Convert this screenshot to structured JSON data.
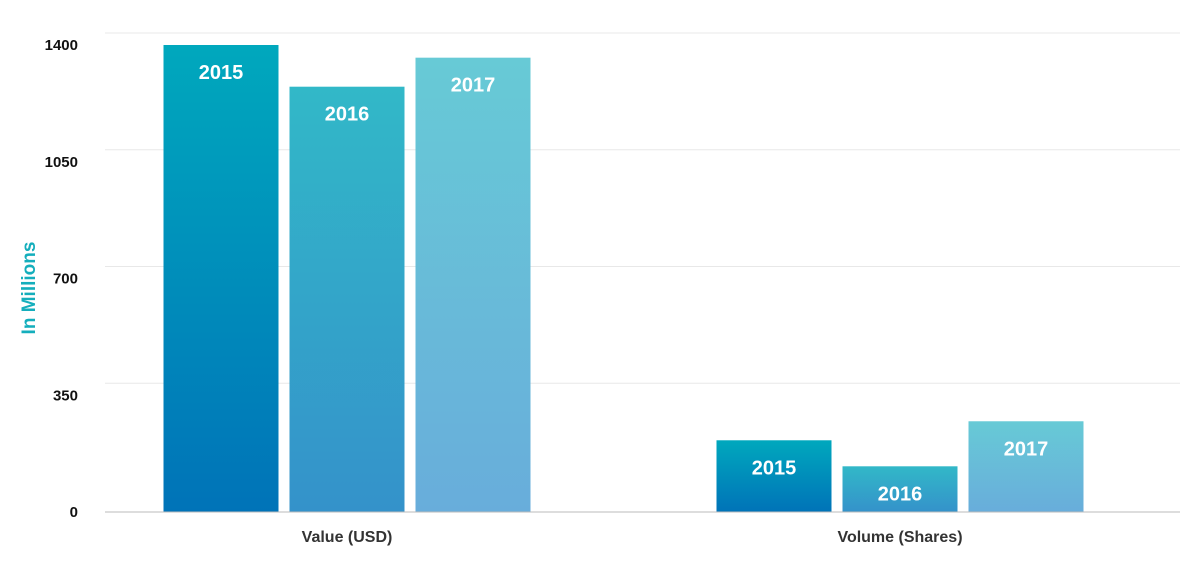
{
  "chart_data": {
    "type": "bar",
    "ylabel": "In Millions",
    "ylim": [
      0,
      1400
    ],
    "yticks": [
      0,
      350,
      700,
      1050,
      1400
    ],
    "ytick_labels": [
      "0",
      "350",
      "700",
      "1050",
      "1400"
    ],
    "grid": true,
    "categories": [
      "Value (USD)",
      "Volume (Shares)"
    ],
    "series": [
      {
        "name": "2015",
        "values": [
          1400,
          215
        ]
      },
      {
        "name": "2016",
        "values": [
          1275,
          137
        ]
      },
      {
        "name": "2017",
        "values": [
          1362,
          272
        ]
      }
    ]
  },
  "colors": {
    "ylabel": "#14aebc",
    "grid": "#e8e8e8",
    "axis": "#bbbbbb",
    "series": [
      {
        "top": "#00a8bd",
        "bottom": "#0073b8"
      },
      {
        "top": "#32b8c8",
        "bottom": "#3492ca"
      },
      {
        "top": "#67cad6",
        "bottom": "#68addb"
      }
    ]
  }
}
